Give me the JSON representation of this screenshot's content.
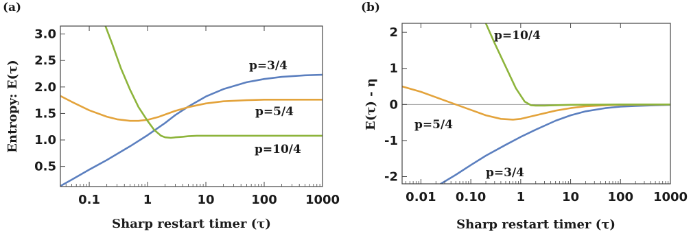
{
  "chart_data": [
    {
      "panel_label": "(a)",
      "type": "line",
      "xscale": "log",
      "xlabel": "Sharp restart timer (τ)",
      "ylabel": "Entropy: E(τ)",
      "xlim": [
        0.032,
        1000
      ],
      "ylim": [
        0.12,
        3.15
      ],
      "xticks": [
        {
          "v": 0.1,
          "label": "0.1"
        },
        {
          "v": 1,
          "label": "1"
        },
        {
          "v": 10,
          "label": "10"
        },
        {
          "v": 100,
          "label": "100"
        },
        {
          "v": 1000,
          "label": "1000"
        }
      ],
      "yticks": [
        {
          "v": 0.5,
          "label": "0.5"
        },
        {
          "v": 1.0,
          "label": "1.0"
        },
        {
          "v": 1.5,
          "label": "1.5"
        },
        {
          "v": 2.0,
          "label": "2.0"
        },
        {
          "v": 2.5,
          "label": "2.5"
        },
        {
          "v": 3.0,
          "label": "3.0"
        }
      ],
      "zero_line": false,
      "series": [
        {
          "name": "p=3/4",
          "color": "#5b7fbf",
          "x": [
            0.032,
            0.05,
            0.1,
            0.2,
            0.5,
            1,
            2,
            3,
            5,
            10,
            20,
            50,
            100,
            200,
            500,
            1000
          ],
          "y": [
            0.13,
            0.25,
            0.44,
            0.62,
            0.88,
            1.09,
            1.32,
            1.47,
            1.63,
            1.82,
            1.96,
            2.09,
            2.15,
            2.19,
            2.22,
            2.23
          ]
        },
        {
          "name": "p=5/4",
          "color": "#e3a33b",
          "x": [
            0.032,
            0.05,
            0.1,
            0.2,
            0.3,
            0.5,
            0.7,
            1,
            1.5,
            2,
            3,
            5,
            10,
            20,
            50,
            100,
            200,
            500,
            1000
          ],
          "y": [
            1.83,
            1.72,
            1.56,
            1.44,
            1.39,
            1.36,
            1.36,
            1.38,
            1.43,
            1.48,
            1.55,
            1.62,
            1.69,
            1.73,
            1.75,
            1.76,
            1.76,
            1.76,
            1.76
          ]
        },
        {
          "name": "p=10/4",
          "color": "#8db43b",
          "x": [
            0.19,
            0.25,
            0.35,
            0.5,
            0.7,
            1,
            1.3,
            1.7,
            2.0,
            2.5,
            3,
            4,
            5,
            7,
            10,
            20,
            50,
            100,
            1000
          ],
          "y": [
            3.15,
            2.8,
            2.35,
            1.95,
            1.62,
            1.36,
            1.19,
            1.08,
            1.05,
            1.04,
            1.05,
            1.06,
            1.07,
            1.08,
            1.08,
            1.08,
            1.08,
            1.08,
            1.08
          ]
        }
      ],
      "annotations": [
        "p=3/4",
        "p=5/4",
        "p=10/4"
      ]
    },
    {
      "panel_label": "(b)",
      "type": "line",
      "xscale": "log",
      "xlabel": "Sharp restart timer (τ)",
      "ylabel": "E(τ) - η",
      "xlim": [
        0.0042,
        1000
      ],
      "ylim": [
        -2.2,
        2.25
      ],
      "xticks": [
        {
          "v": 0.01,
          "label": "0.01"
        },
        {
          "v": 0.1,
          "label": "0.10"
        },
        {
          "v": 1,
          "label": "1"
        },
        {
          "v": 10,
          "label": "10"
        },
        {
          "v": 100,
          "label": "100"
        },
        {
          "v": 1000,
          "label": "1000"
        }
      ],
      "yticks": [
        {
          "v": -2,
          "label": "-2"
        },
        {
          "v": -1,
          "label": "-1"
        },
        {
          "v": 0,
          "label": "0"
        },
        {
          "v": 1,
          "label": "1"
        },
        {
          "v": 2,
          "label": "2"
        }
      ],
      "zero_line": true,
      "series": [
        {
          "name": "p=3/4",
          "color": "#5b7fbf",
          "x": [
            0.025,
            0.05,
            0.1,
            0.2,
            0.5,
            1,
            2,
            5,
            10,
            20,
            50,
            100,
            200,
            500,
            1000
          ],
          "y": [
            -2.2,
            -1.95,
            -1.68,
            -1.42,
            -1.12,
            -0.9,
            -0.7,
            -0.45,
            -0.3,
            -0.19,
            -0.1,
            -0.06,
            -0.04,
            -0.02,
            -0.01
          ]
        },
        {
          "name": "p=5/4",
          "color": "#e3a33b",
          "x": [
            0.0042,
            0.01,
            0.02,
            0.05,
            0.1,
            0.2,
            0.4,
            0.7,
            1,
            2,
            5,
            10,
            20,
            50,
            100,
            1000
          ],
          "y": [
            0.5,
            0.35,
            0.2,
            0.0,
            -0.15,
            -0.3,
            -0.4,
            -0.42,
            -0.4,
            -0.3,
            -0.17,
            -0.1,
            -0.05,
            -0.02,
            -0.01,
            0.0
          ]
        },
        {
          "name": "p=10/4",
          "color": "#8db43b",
          "x": [
            0.2,
            0.3,
            0.5,
            0.8,
            1.2,
            1.6,
            2,
            3,
            5,
            10,
            100,
            1000
          ],
          "y": [
            2.25,
            1.7,
            1.05,
            0.45,
            0.08,
            -0.02,
            -0.03,
            -0.03,
            -0.02,
            -0.01,
            0.0,
            0.0
          ]
        }
      ],
      "annotations": [
        "p=10/4",
        "p=5/4",
        "p=3/4"
      ]
    }
  ]
}
